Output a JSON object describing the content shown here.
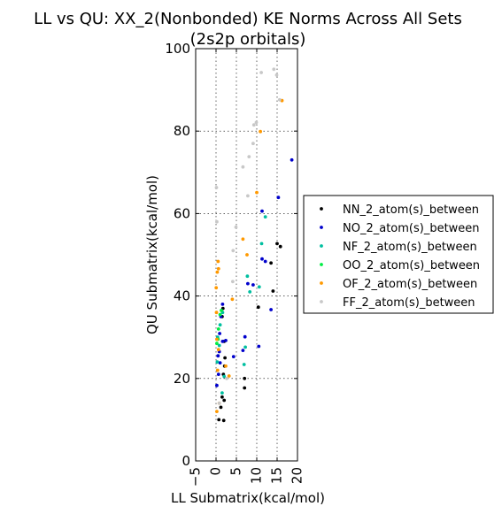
{
  "chart_data": {
    "type": "scatter",
    "title": "LL vs QU: XX_2(Nonbonded) KE Norms Across All Sets",
    "subtitle": "(2s2p orbitals)",
    "xlabel": "LL Submatrix(kcal/mol)",
    "ylabel": "QU Submatrix(kcal/mol)",
    "xlim": [
      -5,
      20
    ],
    "ylim": [
      0,
      100
    ],
    "xticks": [
      "−5",
      "0",
      "5",
      "10",
      "15",
      "20"
    ],
    "yticks": [
      "0",
      "20",
      "40",
      "60",
      "80",
      "100"
    ],
    "grid": true,
    "legend_position": "right",
    "series": [
      {
        "name": "NN_2_atom(s)_between",
        "color": "#000000",
        "points": [
          [
            0.7,
            10
          ],
          [
            1.9,
            9.8
          ],
          [
            1.2,
            13
          ],
          [
            1.5,
            15.5
          ],
          [
            2.0,
            14.7
          ],
          [
            1.8,
            21
          ],
          [
            2.1,
            23
          ],
          [
            2.2,
            25
          ],
          [
            2.0,
            29
          ],
          [
            1.5,
            35
          ],
          [
            1.7,
            37
          ],
          [
            7.0,
            20
          ],
          [
            7.0,
            17.7
          ],
          [
            10.4,
            37.3
          ],
          [
            13.5,
            48
          ],
          [
            14.0,
            41.2
          ],
          [
            15.0,
            52.7
          ],
          [
            15.8,
            52
          ]
        ]
      },
      {
        "name": "NO_2_atom(s)_between",
        "color": "#0000cc",
        "points": [
          [
            0.2,
            18.3
          ],
          [
            0.6,
            21
          ],
          [
            1.0,
            23.8
          ],
          [
            0.5,
            25.5
          ],
          [
            0.8,
            26.5
          ],
          [
            0.9,
            30.9
          ],
          [
            1.2,
            35
          ],
          [
            1.6,
            38
          ],
          [
            1.6,
            29
          ],
          [
            2.4,
            29.2
          ],
          [
            4.3,
            25.3
          ],
          [
            6.6,
            26.8
          ],
          [
            7.1,
            30.1
          ],
          [
            7.8,
            43
          ],
          [
            9.1,
            42.7
          ],
          [
            10.5,
            27.8
          ],
          [
            11.3,
            60.6
          ],
          [
            11.3,
            49
          ],
          [
            12.1,
            48.4
          ],
          [
            13.5,
            36.7
          ],
          [
            15.3,
            63.9
          ],
          [
            18.6,
            73
          ]
        ]
      },
      {
        "name": "NF_2_atom(s)_between",
        "color": "#00bfa0",
        "points": [
          [
            0.3,
            24
          ],
          [
            0.8,
            28
          ],
          [
            0.4,
            30
          ],
          [
            1.0,
            33
          ],
          [
            1.6,
            36
          ],
          [
            1.5,
            16.5
          ],
          [
            2.0,
            20.5
          ],
          [
            6.9,
            23.4
          ],
          [
            7.2,
            27.6
          ],
          [
            7.7,
            44.8
          ],
          [
            8.3,
            41
          ],
          [
            10.6,
            42.2
          ],
          [
            11.2,
            52.7
          ],
          [
            12.1,
            59.2
          ]
        ]
      },
      {
        "name": "OO_2_atom(s)_between",
        "color": "#00ee44",
        "points": [
          [
            0.2,
            28.5
          ],
          [
            0.5,
            29.5
          ],
          [
            0.6,
            32
          ],
          [
            1.0,
            35.5
          ],
          [
            1.3,
            36.5
          ]
        ]
      },
      {
        "name": "OF_2_atom(s)_between",
        "color": "#ff9900",
        "points": [
          [
            0.2,
            12
          ],
          [
            0.8,
            14
          ],
          [
            0.4,
            22
          ],
          [
            0.6,
            27
          ],
          [
            0.2,
            29.5
          ],
          [
            0.1,
            36
          ],
          [
            0.05,
            42
          ],
          [
            0.3,
            45.8
          ],
          [
            0.6,
            46.6
          ],
          [
            0.5,
            48.4
          ],
          [
            2.4,
            23
          ],
          [
            3.2,
            20.6
          ],
          [
            4.0,
            39.2
          ],
          [
            6.6,
            53.8
          ],
          [
            7.6,
            50
          ],
          [
            10.0,
            65.1
          ],
          [
            10.9,
            79.9
          ],
          [
            16.2,
            87.4
          ]
        ]
      },
      {
        "name": "FF_2_atom(s)_between",
        "color": "#c8c8c8",
        "points": [
          [
            0.1,
            66.3
          ],
          [
            0.2,
            58
          ],
          [
            0.8,
            14
          ],
          [
            2.6,
            20
          ],
          [
            4.1,
            43.5
          ],
          [
            4.2,
            51
          ],
          [
            4.9,
            56.7
          ],
          [
            6.6,
            71.3
          ],
          [
            7.8,
            64.3
          ],
          [
            8.1,
            73.8
          ],
          [
            9.1,
            77
          ],
          [
            9.3,
            81.5
          ],
          [
            9.9,
            82.1
          ],
          [
            11.1,
            94.2
          ],
          [
            14.2,
            95
          ],
          [
            14.9,
            93.6
          ],
          [
            15.6,
            87.6
          ]
        ]
      }
    ]
  }
}
